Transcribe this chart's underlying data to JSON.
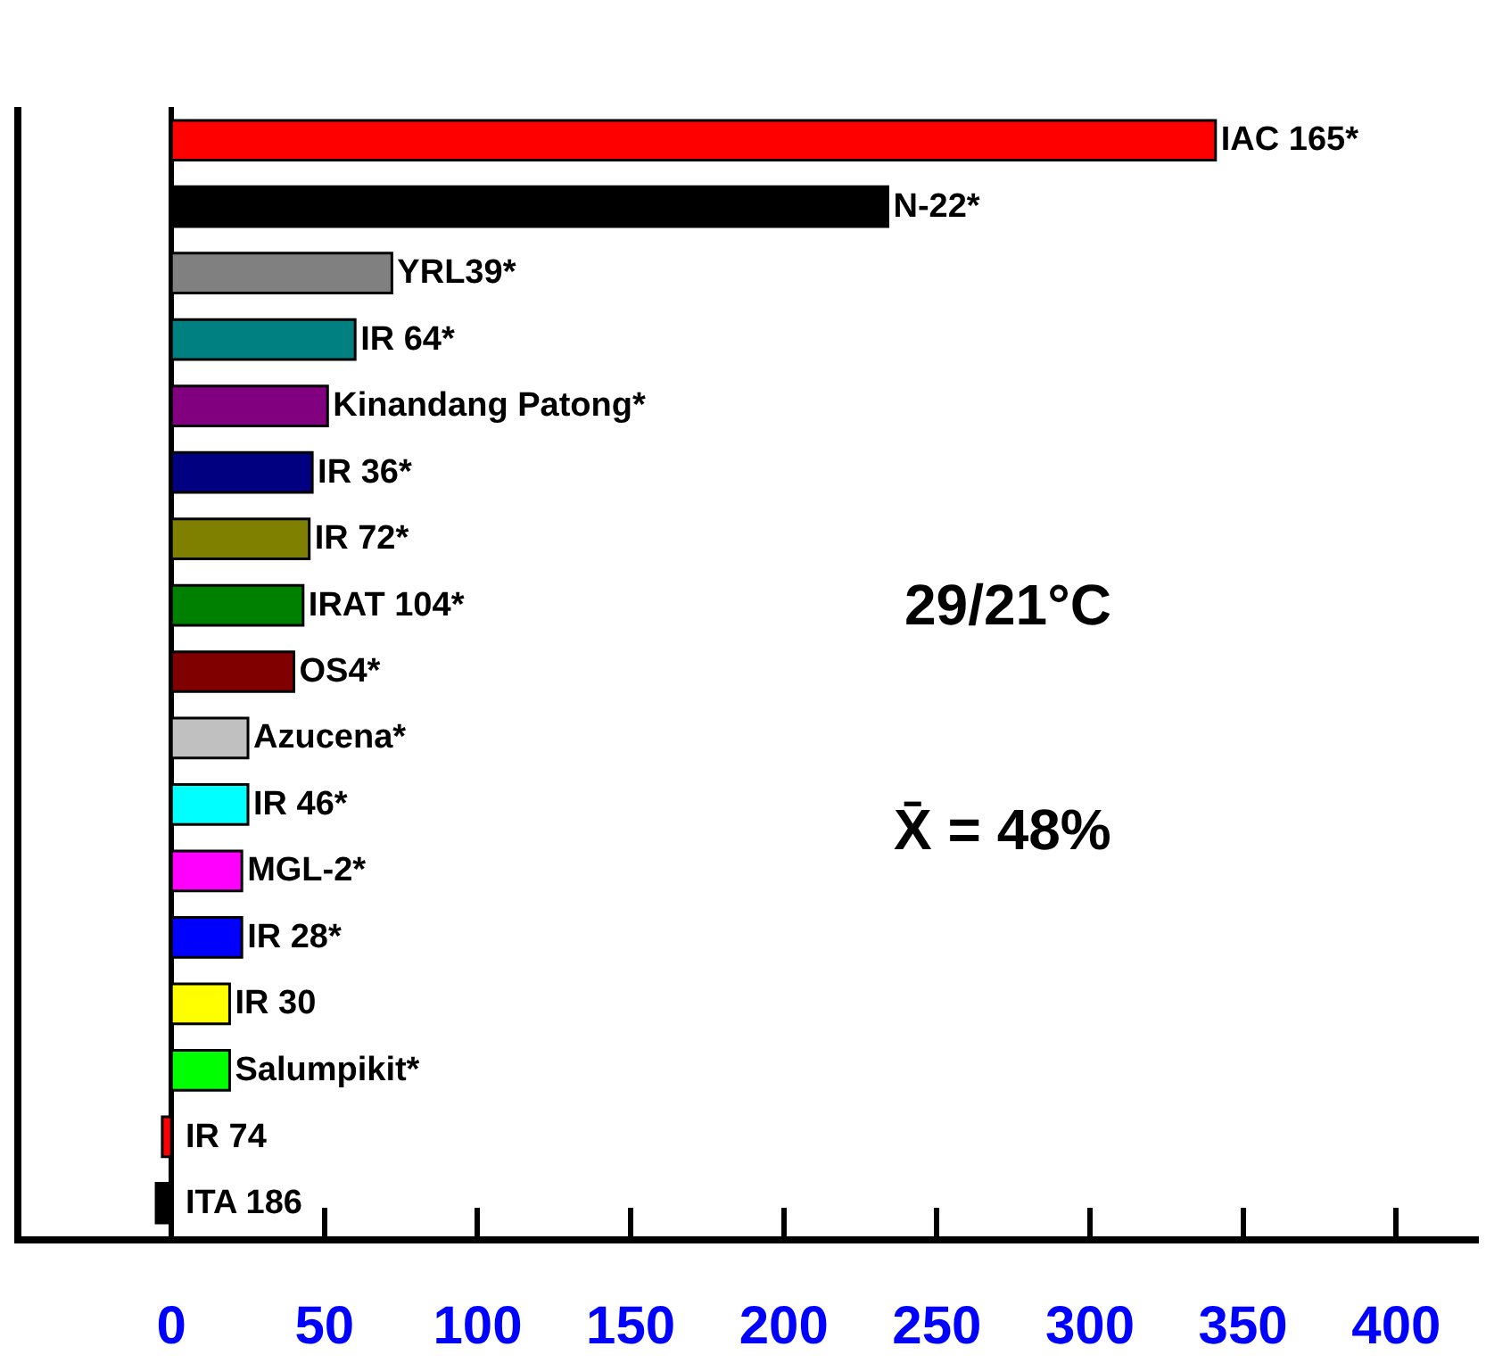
{
  "chart_data": {
    "type": "bar",
    "orientation": "horizontal",
    "categories": [
      "IAC 165*",
      "N-22*",
      "YRL39*",
      "IR 64*",
      "Kinandang Patong*",
      "IR 36*",
      "IR 72*",
      "IRAT 104*",
      "OS4*",
      "Azucena*",
      "IR 46*",
      "MGL-2*",
      "IR 28*",
      "IR 30",
      "Salumpikit*",
      "IR 74",
      "ITA 186"
    ],
    "values": [
      341,
      234,
      72,
      60,
      51,
      46,
      45,
      43,
      40,
      25,
      25,
      23,
      23,
      19,
      19,
      -3,
      -5
    ],
    "colors": [
      "#ff0000",
      "#000000",
      "#808080",
      "#008080",
      "#800080",
      "#000080",
      "#808000",
      "#008000",
      "#800000",
      "#c0c0c0",
      "#00ffff",
      "#ff00ff",
      "#0000ff",
      "#ffff00",
      "#00ff00",
      "#ff0000",
      "#000000"
    ],
    "xlim": [
      -49,
      427
    ],
    "xticks": [
      0,
      50,
      100,
      150,
      200,
      250,
      300,
      350,
      400
    ],
    "tick_labels": "x",
    "annotations": [
      "29/21°C",
      "X̄ = 48%"
    ]
  }
}
